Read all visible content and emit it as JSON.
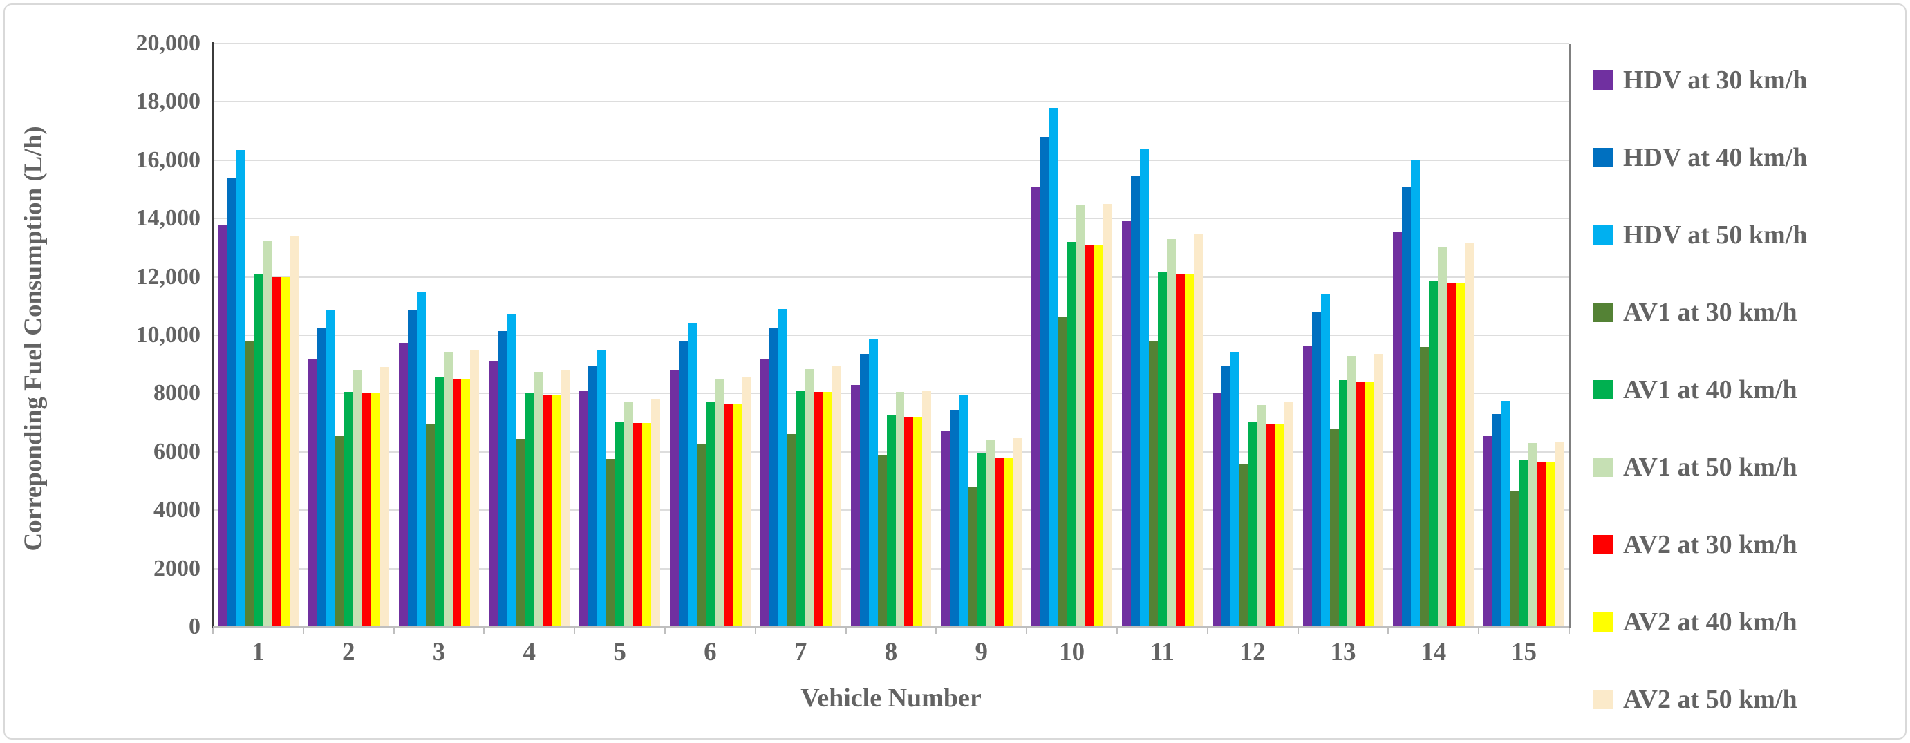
{
  "figure": {
    "background_color": "#FFFFFF",
    "frame_border_color": "#D9D9D9",
    "gridline_color": "#DDDDDD",
    "y_axis_line_color": "#3B3B3B",
    "x_axis_line_color": "#BFBFBF",
    "text_color": "#636363"
  },
  "chart_data": {
    "type": "bar",
    "title": "",
    "xlabel": "Vehicle Number",
    "ylabel": "Correponding Fuel Consumption (L/h)",
    "ylim": [
      0,
      20000
    ],
    "grid": true,
    "legend_position": "right",
    "categories": [
      "1",
      "2",
      "3",
      "4",
      "5",
      "6",
      "7",
      "8",
      "9",
      "10",
      "11",
      "12",
      "13",
      "14",
      "15"
    ],
    "y_ticks": [
      {
        "value": 0,
        "label": "0"
      },
      {
        "value": 2000,
        "label": "2000"
      },
      {
        "value": 4000,
        "label": "4000"
      },
      {
        "value": 6000,
        "label": "6000"
      },
      {
        "value": 8000,
        "label": "8000"
      },
      {
        "value": 10000,
        "label": "10,000"
      },
      {
        "value": 12000,
        "label": "12,000"
      },
      {
        "value": 14000,
        "label": "14,000"
      },
      {
        "value": 16000,
        "label": "16,000"
      },
      {
        "value": 18000,
        "label": "18,000"
      },
      {
        "value": 20000,
        "label": "20,000"
      }
    ],
    "series": [
      {
        "name": "HDV at 30 km/h",
        "key": "hdv-30",
        "color": "#7030A0",
        "values": [
          13800,
          9200,
          9750,
          9100,
          8100,
          8800,
          9200,
          8300,
          6700,
          15100,
          13900,
          8000,
          9650,
          13550,
          6550
        ]
      },
      {
        "name": "HDV at 40 km/h",
        "key": "hdv-40",
        "color": "#0070C0",
        "values": [
          15400,
          10250,
          10850,
          10150,
          8950,
          9800,
          10250,
          9350,
          7450,
          16800,
          15450,
          8950,
          10800,
          15100,
          7300
        ]
      },
      {
        "name": "HDV at 50 km/h",
        "key": "hdv-50",
        "color": "#00B0F0",
        "values": [
          16350,
          10850,
          11500,
          10700,
          9500,
          10400,
          10900,
          9850,
          7950,
          17800,
          16400,
          9400,
          11400,
          16000,
          7750
        ]
      },
      {
        "name": "AV1 at 30 km/h",
        "key": "av1-30",
        "color": "#548235",
        "values": [
          9800,
          6550,
          6950,
          6450,
          5750,
          6250,
          6600,
          5900,
          4800,
          10650,
          9800,
          5600,
          6800,
          9600,
          4650
        ]
      },
      {
        "name": "AV1 at 40 km/h",
        "key": "av1-40",
        "color": "#00B050",
        "values": [
          12100,
          8050,
          8550,
          8000,
          7050,
          7700,
          8100,
          7250,
          5950,
          13200,
          12150,
          7050,
          8450,
          11850,
          5700
        ]
      },
      {
        "name": "AV1 at 50 km/h",
        "key": "av1-50",
        "color": "#C6E0B4",
        "values": [
          13250,
          8800,
          9400,
          8750,
          7700,
          8500,
          8850,
          8050,
          6400,
          14450,
          13300,
          7600,
          9300,
          13000,
          6300
        ]
      },
      {
        "name": "AV2 at 30 km/h",
        "key": "av2-30",
        "color": "#FF0000",
        "values": [
          12000,
          8000,
          8500,
          7950,
          7000,
          7650,
          8050,
          7200,
          5800,
          13100,
          12100,
          6950,
          8400,
          11800,
          5650
        ]
      },
      {
        "name": "AV2 at 40 km/h",
        "key": "av2-40",
        "color": "#FFFF00",
        "values": [
          12000,
          8000,
          8500,
          7950,
          7000,
          7650,
          8050,
          7200,
          5800,
          13100,
          12100,
          6950,
          8400,
          11800,
          5650
        ]
      },
      {
        "name": "AV2 at 50 km/h",
        "key": "av2-50",
        "color": "#FBEACA",
        "values": [
          13400,
          8900,
          9500,
          8800,
          7800,
          8550,
          8950,
          8100,
          6500,
          14500,
          13450,
          7700,
          9350,
          13150,
          6350
        ]
      }
    ]
  }
}
